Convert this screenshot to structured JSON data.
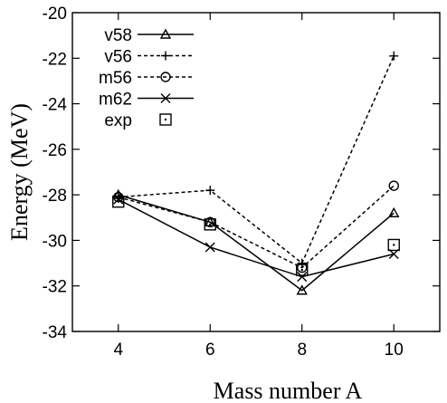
{
  "chart_data": {
    "type": "line",
    "xlabel": "Mass number  A",
    "ylabel": "Energy   (MeV)",
    "x": [
      4,
      6,
      8,
      10
    ],
    "xticks": [
      4,
      6,
      8,
      10
    ],
    "xlim": [
      3,
      11
    ],
    "yticks": [
      -20,
      -22,
      -24,
      -26,
      -28,
      -30,
      -32,
      -34
    ],
    "ylim": [
      -34,
      -20
    ],
    "grid": false,
    "legend_position": "top-left",
    "series": [
      {
        "name": "v58",
        "values": [
          -28.0,
          -29.2,
          -32.2,
          -28.8
        ],
        "line": "solid",
        "marker": "triangle"
      },
      {
        "name": "v56",
        "values": [
          -28.1,
          -27.8,
          -31.0,
          -21.9
        ],
        "line": "dashed",
        "marker": "plus"
      },
      {
        "name": "m56",
        "values": [
          -28.1,
          -29.2,
          -31.2,
          -27.6
        ],
        "line": "dashed",
        "marker": "circle"
      },
      {
        "name": "m62",
        "values": [
          -28.2,
          -30.3,
          -31.6,
          -30.6
        ],
        "line": "solid",
        "marker": "x"
      },
      {
        "name": "exp",
        "values": [
          -28.3,
          -29.3,
          -31.3,
          -30.2
        ],
        "line": "none",
        "marker": "square-dot"
      }
    ]
  }
}
